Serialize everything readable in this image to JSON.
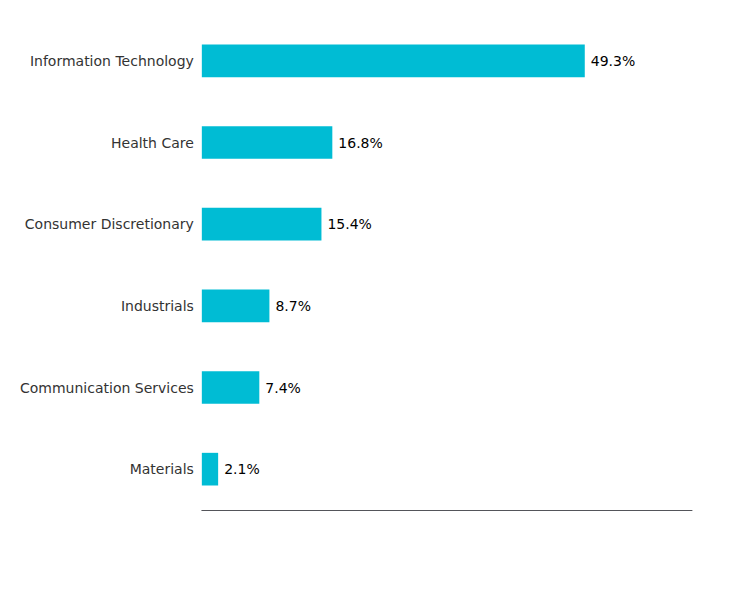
{
  "chart_data": {
    "type": "bar",
    "orientation": "horizontal",
    "categories": [
      "Information Technology",
      "Health Care",
      "Consumer Discretionary",
      "Industrials",
      "Communication Services",
      "Materials"
    ],
    "values": [
      49.3,
      16.8,
      15.4,
      8.7,
      7.4,
      2.1
    ],
    "value_labels": [
      "49.3%",
      "16.8%",
      "15.4%",
      "8.7%",
      "7.4%",
      "2.1%"
    ],
    "data_labels": true,
    "color": "#00BCD4",
    "xlim": [
      0,
      63.104
    ],
    "grid": false,
    "tick_labels": "y"
  }
}
